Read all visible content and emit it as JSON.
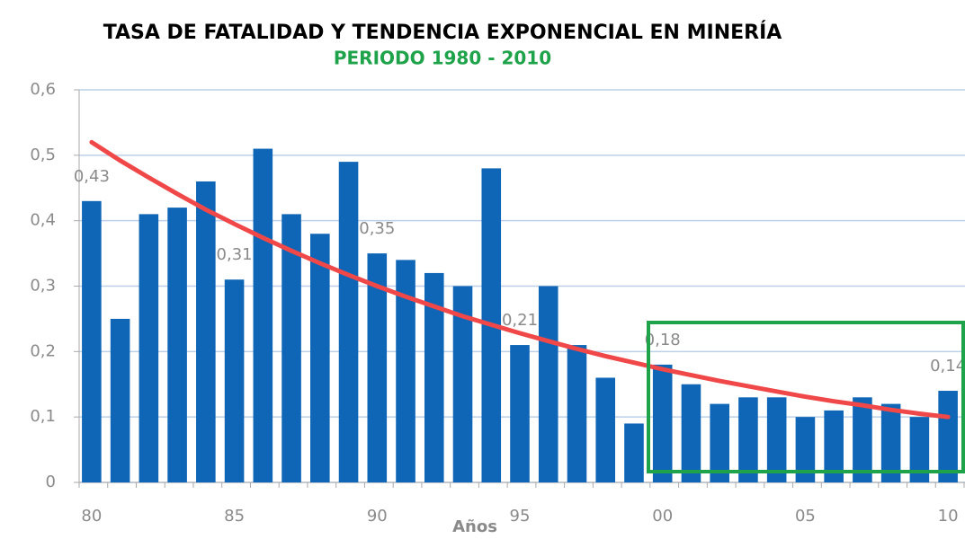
{
  "chart_data": {
    "type": "bar",
    "title": "TASA DE FATALIDAD Y TENDENCIA EXPONENCIAL EN MINERÍA",
    "subtitle": "PERIODO 1980 - 2010",
    "x_label": "Años",
    "categories": [
      "80",
      null,
      null,
      null,
      null,
      "85",
      null,
      null,
      null,
      null,
      "90",
      null,
      null,
      null,
      null,
      "95",
      null,
      null,
      null,
      null,
      "00",
      null,
      null,
      null,
      null,
      "05",
      null,
      null,
      null,
      null,
      "10"
    ],
    "values": [
      0.43,
      0.25,
      0.41,
      0.42,
      0.46,
      0.31,
      0.51,
      0.41,
      0.38,
      0.49,
      0.35,
      0.34,
      0.32,
      0.3,
      0.48,
      0.21,
      0.3,
      0.21,
      0.16,
      0.09,
      0.18,
      0.15,
      0.12,
      0.13,
      0.13,
      0.1,
      0.11,
      0.13,
      0.12,
      0.1,
      0.14
    ],
    "value_labels": [
      "0,43",
      null,
      null,
      null,
      null,
      "0,31",
      null,
      null,
      null,
      null,
      "0,35",
      null,
      null,
      null,
      null,
      "0,21",
      null,
      null,
      null,
      null,
      "0,18",
      null,
      null,
      null,
      null,
      null,
      null,
      null,
      null,
      null,
      "0,14"
    ],
    "color": "#0f66b6",
    "trend": {
      "color": "#f04848",
      "values": [
        0.52,
        0.492,
        0.466,
        0.441,
        0.417,
        0.395,
        0.374,
        0.354,
        0.335,
        0.317,
        0.3,
        0.284,
        0.269,
        0.254,
        0.241,
        0.228,
        0.216,
        0.204,
        0.193,
        0.183,
        0.173,
        0.164,
        0.155,
        0.147,
        0.139,
        0.131,
        0.124,
        0.118,
        0.111,
        0.105,
        0.1
      ]
    },
    "highlight_color": "#1fa34a",
    "ylim": [
      0,
      0.6
    ],
    "yticks": [
      0,
      {
        "value": 0.1,
        "label": "0,1"
      },
      {
        "value": 0.2,
        "label": "0,2"
      },
      {
        "value": 0.3,
        "label": "0,3"
      },
      {
        "value": 0.4,
        "label": "0,4"
      },
      {
        "value": 0.5,
        "label": "0,5"
      },
      {
        "value": 0.6,
        "label": "0,6"
      }
    ],
    "grid": true
  }
}
